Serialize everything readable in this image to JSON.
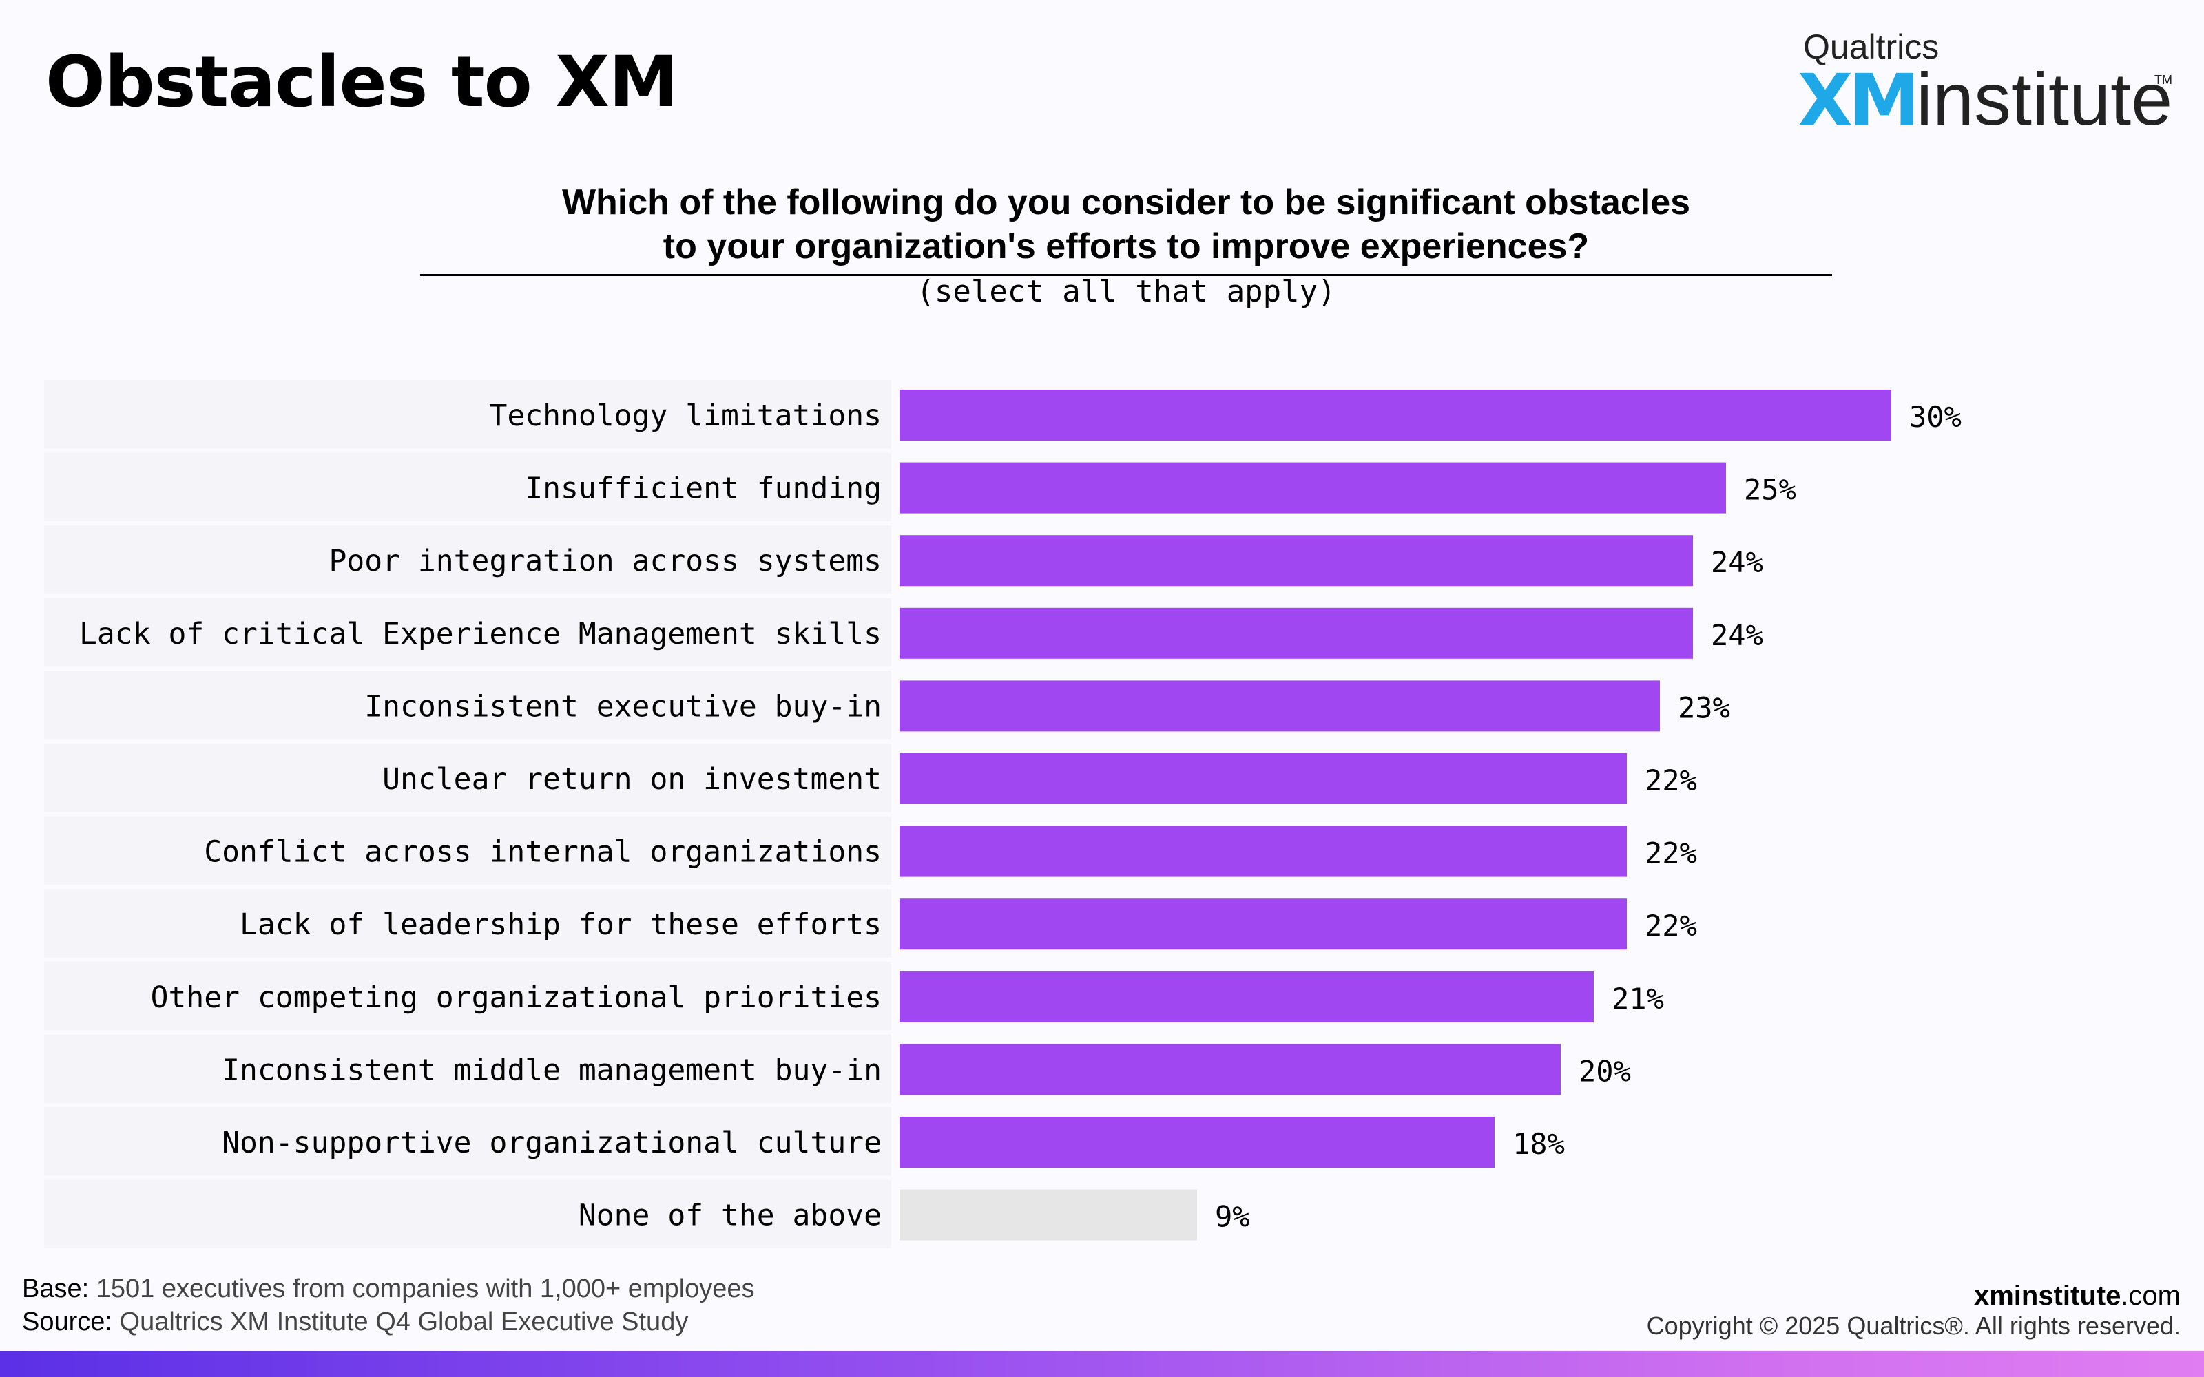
{
  "page_title": "Obstacles to XM",
  "logo": {
    "brand": "Qualtrics",
    "xm": "XM",
    "institute": "institute",
    "tm": "TM"
  },
  "question": {
    "line1": "Which of the following do you consider to be significant obstacles",
    "line2": "to your organization's efforts to improve experiences?",
    "instruction": "(select all that apply)"
  },
  "chart_data": {
    "type": "bar",
    "orientation": "horizontal",
    "categories": [
      "Technology limitations",
      "Insufficient funding",
      "Poor integration across systems",
      "Lack of critical Experience Management skills",
      "Inconsistent executive buy-in",
      "Unclear return on investment",
      "Conflict across internal organizations",
      "Lack of leadership for these efforts",
      "Other competing organizational priorities",
      "Inconsistent middle management buy-in",
      "Non-supportive organizational culture",
      "None of the above"
    ],
    "values": [
      30,
      25,
      24,
      24,
      23,
      22,
      22,
      22,
      21,
      20,
      18,
      9
    ],
    "value_labels": [
      "30%",
      "25%",
      "24%",
      "24%",
      "23%",
      "22%",
      "22%",
      "22%",
      "21%",
      "20%",
      "18%",
      "9%"
    ],
    "unit": "%",
    "colors": {
      "bar": "#a147f2",
      "bar_none": "#e6e6e6",
      "row_band": "#f5f4f9"
    },
    "grid": false,
    "legend": "none"
  },
  "footer": {
    "base_label": "Base:",
    "base_text": "1501 executives from companies with 1,000+ employees",
    "source_label": "Source:",
    "source_text": "Qualtrics XM Institute Q4 Global Executive Study",
    "site_bold": "xminstitute",
    "site_rest": ".com",
    "copyright": "Copyright © 2025 Qualtrics®. All rights reserved."
  }
}
